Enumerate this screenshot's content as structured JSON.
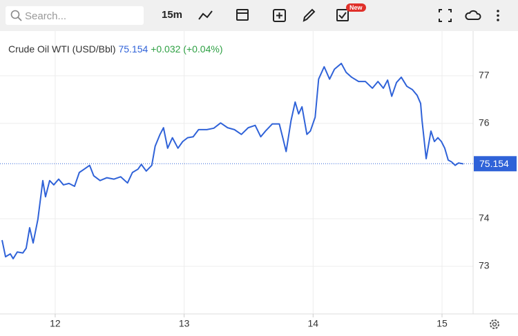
{
  "toolbar": {
    "search_placeholder": "Search...",
    "interval": "15m",
    "badge": "New"
  },
  "chart_data": {
    "type": "line",
    "title": "Crude Oil WTI (USD/Bbl)",
    "last_value": 75.154,
    "change": "+0.032 (+0.04%)",
    "color": "#2f62d8",
    "change_color": "#2ea043",
    "grid": true,
    "x": [
      11.588,
      11.615,
      11.652,
      11.674,
      11.706,
      11.749,
      11.775,
      11.802,
      11.829,
      11.866,
      11.904,
      11.925,
      11.957,
      11.989,
      12.027,
      12.064,
      12.107,
      12.15,
      12.187,
      12.225,
      12.267,
      12.299,
      12.348,
      12.401,
      12.455,
      12.508,
      12.561,
      12.599,
      12.642,
      12.668,
      12.706,
      12.749,
      12.775,
      12.813,
      12.84,
      12.872,
      12.909,
      12.952,
      12.989,
      13.027,
      13.07,
      13.112,
      13.176,
      13.23,
      13.283,
      13.337,
      13.39,
      13.444,
      13.497,
      13.551,
      13.594,
      13.631,
      13.684,
      13.738,
      13.765,
      13.791,
      13.829,
      13.861,
      13.888,
      13.914,
      13.952,
      13.979,
      14.016,
      14.043,
      14.086,
      14.128,
      14.166,
      14.219,
      14.257,
      14.299,
      14.353,
      14.406,
      14.46,
      14.503,
      14.545,
      14.578,
      14.61,
      14.647,
      14.684,
      14.727,
      14.77,
      14.807,
      14.834,
      14.845,
      14.877,
      14.914,
      14.941,
      14.968,
      14.995,
      15.021,
      15.048,
      15.075,
      15.102,
      15.128,
      15.166
    ],
    "values": [
      73.55,
      73.2,
      73.26,
      73.16,
      73.3,
      73.28,
      73.38,
      73.81,
      73.49,
      73.99,
      74.8,
      74.46,
      74.8,
      74.71,
      74.83,
      74.71,
      74.74,
      74.68,
      74.97,
      75.04,
      75.12,
      74.9,
      74.8,
      74.86,
      74.83,
      74.88,
      74.75,
      74.97,
      75.04,
      75.14,
      75.0,
      75.12,
      75.52,
      75.77,
      75.91,
      75.48,
      75.7,
      75.48,
      75.62,
      75.7,
      75.72,
      75.87,
      75.87,
      75.9,
      76.01,
      75.91,
      75.87,
      75.77,
      75.91,
      75.96,
      75.72,
      75.84,
      75.99,
      75.99,
      75.7,
      75.41,
      76.06,
      76.45,
      76.2,
      76.35,
      75.77,
      75.84,
      76.13,
      76.93,
      77.19,
      76.93,
      77.14,
      77.26,
      77.07,
      76.97,
      76.88,
      76.88,
      76.74,
      76.88,
      76.74,
      76.91,
      76.57,
      76.86,
      76.97,
      76.78,
      76.71,
      76.59,
      76.42,
      76.06,
      75.26,
      75.84,
      75.62,
      75.7,
      75.62,
      75.48,
      75.23,
      75.19,
      75.12,
      75.17,
      75.15
    ],
    "xlim": [
      11.572,
      15.241
    ],
    "xticks": [
      12,
      13,
      14,
      15
    ],
    "ylim": [
      72,
      77.94
    ],
    "yticks": [
      73,
      74,
      76,
      77
    ]
  }
}
